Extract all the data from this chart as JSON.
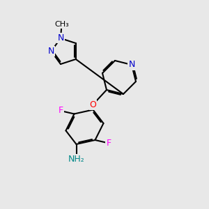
{
  "background_color": "#e8e8e8",
  "bond_color": "#000000",
  "bond_width": 1.5,
  "dbo": 0.06,
  "atom_colors": {
    "N": "#0000cc",
    "O": "#ff0000",
    "F": "#ff00ff",
    "NH2_color": "#008888",
    "C": "#000000"
  },
  "font_size": 9
}
